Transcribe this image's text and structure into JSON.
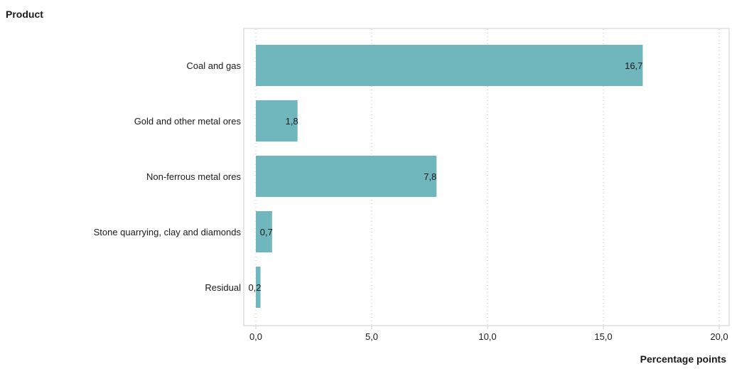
{
  "chart_data": {
    "type": "bar",
    "orientation": "horizontal",
    "title": "",
    "ylabel": "Product",
    "xlabel": "Percentage points",
    "categories": [
      "Coal and gas",
      "Gold and other metal ores",
      "Non-ferrous metal ores",
      "Stone quarrying, clay and diamonds",
      "Residual"
    ],
    "values": [
      16.7,
      1.8,
      7.8,
      0.7,
      0.2
    ],
    "value_labels": [
      "16,7",
      "1,8",
      "7,8",
      "0,7",
      "0,2"
    ],
    "xlim": [
      0,
      20
    ],
    "xticks": [
      0,
      5,
      10,
      15,
      20
    ],
    "xtick_labels": [
      "0,0",
      "5,0",
      "10,0",
      "15,0",
      "20,0"
    ],
    "grid": "vertical dotted",
    "legend": "none",
    "bar_color": "#6fb7bd"
  }
}
